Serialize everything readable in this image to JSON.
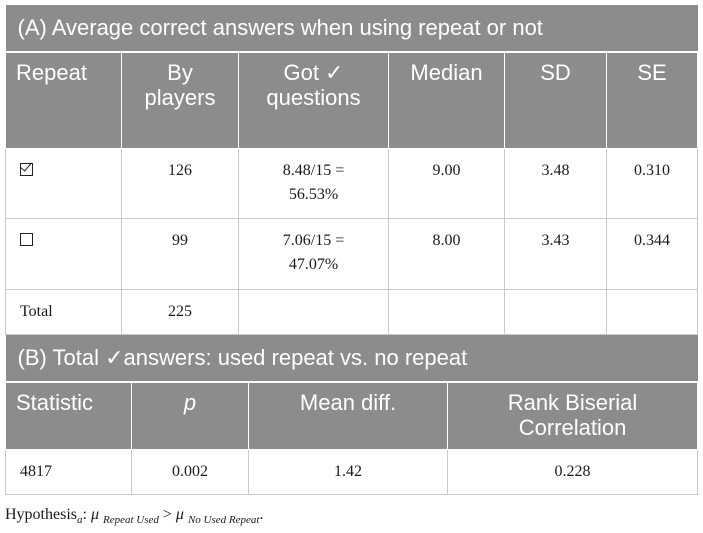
{
  "section_a": {
    "title": "(A) Average correct answers when using repeat or not",
    "headers": [
      "Repeat",
      "By players",
      "Got ✓ questions",
      "Median",
      "SD",
      "SE"
    ],
    "headers_split": {
      "by_players": [
        "By",
        "players"
      ],
      "got_questions": [
        "Got ✓",
        "questions"
      ]
    },
    "rows": [
      {
        "repeat": "checked",
        "by_players": "126",
        "got_line1": "8.48/15 =",
        "got_line2": "56.53%",
        "median": "9.00",
        "sd": "3.48",
        "se": "0.310"
      },
      {
        "repeat": "unchecked",
        "by_players": "99",
        "got_line1": "7.06/15 =",
        "got_line2": "47.07%",
        "median": "8.00",
        "sd": "3.43",
        "se": "0.344"
      },
      {
        "repeat": "Total",
        "by_players": "225",
        "got_line1": "",
        "got_line2": "",
        "median": "",
        "sd": "",
        "se": ""
      }
    ]
  },
  "section_b": {
    "title": "(B) Total ✓answers: used repeat vs. no repeat",
    "headers": [
      "Statistic",
      "p",
      "Mean diff.",
      "Rank Biserial Correlation"
    ],
    "headers_split": {
      "rank": [
        "Rank Biserial",
        "Correlation"
      ]
    },
    "row": {
      "statistic": "4817",
      "p": "0.002",
      "mean_diff": "1.42",
      "rank": "0.228"
    }
  },
  "footnote": {
    "prefix": "Hypothesis",
    "sub_a": "a",
    "colon": ": ",
    "mu1": "μ",
    "sub1": "Repeat Used",
    "gt": " > ",
    "mu2": "μ",
    "sub2": "No Used Repeat",
    "end": "."
  }
}
